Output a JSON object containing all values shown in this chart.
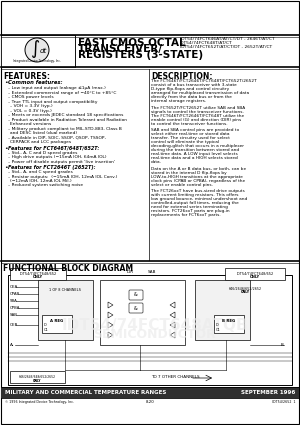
{
  "title_line1": "FAST CMOS OCTAL",
  "title_line2": "TRANSCEIVER/",
  "title_line3": "REGISTERS (3-STATE)",
  "pn1": "IDT54/74FCT646AT/AT/CT/DT - 2646T/AT/CT",
  "pn2": "IDT54/74FCT648T/AT/CT",
  "pn3": "IDT54/74FCT652T/AT/CT/DT - 2652T/AT/CT",
  "features_title": "FEATURES:",
  "common_label": "Common features:",
  "common_items": [
    "Low input and output leakage ≤1μA (max.)",
    "Extended commercial range of −40°C to +85°C",
    "CMOS power levels",
    "True TTL input and output compatibility",
    "   – VOH = 3.3V (typ.)",
    "   – VOL = 0.3V (typ.)",
    "Meets or exceeds JEDEC standard 18 specifications",
    "Product available in Radiation Tolerant and Radiation",
    "   Enhanced versions",
    "Military product compliant to MIL-STD-883, Class B",
    "   and DESC listed (dual marked)",
    "Available in DIP, SOIC, SSOP, QSOP, TSSOP,",
    "   CERPACK and LCC packages"
  ],
  "feat646_label": "Features for FCT646T/648T/652T:",
  "feat646_items": [
    "Std., A, C and D speed grades",
    "High drive outputs (−15mA IOH, 64mA IOL)",
    "Power off disable outputs permit 'live insertion'"
  ],
  "feat2646_label": "Features for FCT2646T (2652T):",
  "feat2646_items": [
    "Std., A, and C speed grades",
    "Resistor outputs:  (−15mA IOH, 12mA IOL Conv.)",
    "   (−12mA IOH, 12mA IOL Mil.)",
    "Reduced system switching noise"
  ],
  "desc_title": "DESCRIPTION:",
  "desc_para1": "The FCT646T/FCT2646T/FCT648T/FCT652T/2652T consist of a bus transceiver with 3-state D-type flip-flops and control circuitry arranged for multiplexed transmission of data directly from the data bus or from the internal storage registers.",
  "desc_para2": "The FCT652T/FCT2652T utilize SAB and SBA signals to control the transceiver functions. The FCT646T/FCT2646T/FCT648T utilize the enable control (G) and direction (DIR) pins to control the transceiver functions.",
  "desc_para3": "SAB and SBA control pins are provided to select either real-time or stored data transfer. The circuitry used for select control will eliminate the typical decoding-glitch that occurs in a multiplexer during the transition between stored and real-time data. A LOW input level selects real-time data and a HIGH selects stored data.",
  "desc_para4": "Data on the A or B data bus, or both, can be stored in the internal D flip-flops by LOW-to-HIGH transitions at the appropriate clock pins (CPAB or CPBA), regardless of the select or enable control pins.",
  "desc_para5": "The FCT26xxT have bus-sized drive outputs with current limiting resistors. This offers low ground bounce, minimal undershoot and controlled-output fall times, reducing the need for external series terminating resistors. FCT26xxT parts are plug-in replacements for FCT6xxT parts.",
  "bd_title": "FUNCTIONAL BLOCK DIAGRAM",
  "footer_bar": "MILITARY AND COMMERCIAL TEMPERATURE RANGES",
  "footer_date": "SEPTEMBER 1996",
  "footer_copy": "© 1996 Integrated Device Technology, Inc.",
  "footer_page": "8.20",
  "footer_docnum": "IDT54/2652\n1"
}
